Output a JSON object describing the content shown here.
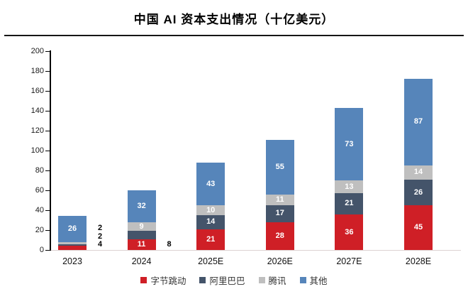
{
  "title": "中国 AI 资本支出情况（十亿美元）",
  "chart_data": {
    "type": "bar",
    "stacked": true,
    "title": "中国 AI 资本支出情况（十亿美元）",
    "categories": [
      "2023",
      "2024",
      "2025E",
      "2026E",
      "2027E",
      "2028E"
    ],
    "series": [
      {
        "name": "字节跳动",
        "color": "#cf1f26",
        "values": [
          4,
          11,
          21,
          28,
          36,
          45
        ]
      },
      {
        "name": "阿里巴巴",
        "color": "#44546a",
        "values": [
          2,
          8,
          14,
          17,
          21,
          26
        ]
      },
      {
        "name": "腾讯",
        "color": "#bfbfbf",
        "values": [
          2,
          9,
          10,
          11,
          13,
          14
        ]
      },
      {
        "name": "其他",
        "color": "#5685ba",
        "values": [
          26,
          32,
          43,
          55,
          73,
          87
        ]
      }
    ],
    "totals": [
      34,
      60,
      88,
      111,
      143,
      172
    ],
    "xlabel": "",
    "ylabel": "",
    "ylim": [
      0,
      200
    ],
    "ytick_step": 20,
    "grid": false,
    "legend_position": "bottom",
    "note": "2023 segment values 腾讯=2, 阿里巴巴=2, 字节跳动=4 are printed beside the bar because the segments are too small"
  }
}
